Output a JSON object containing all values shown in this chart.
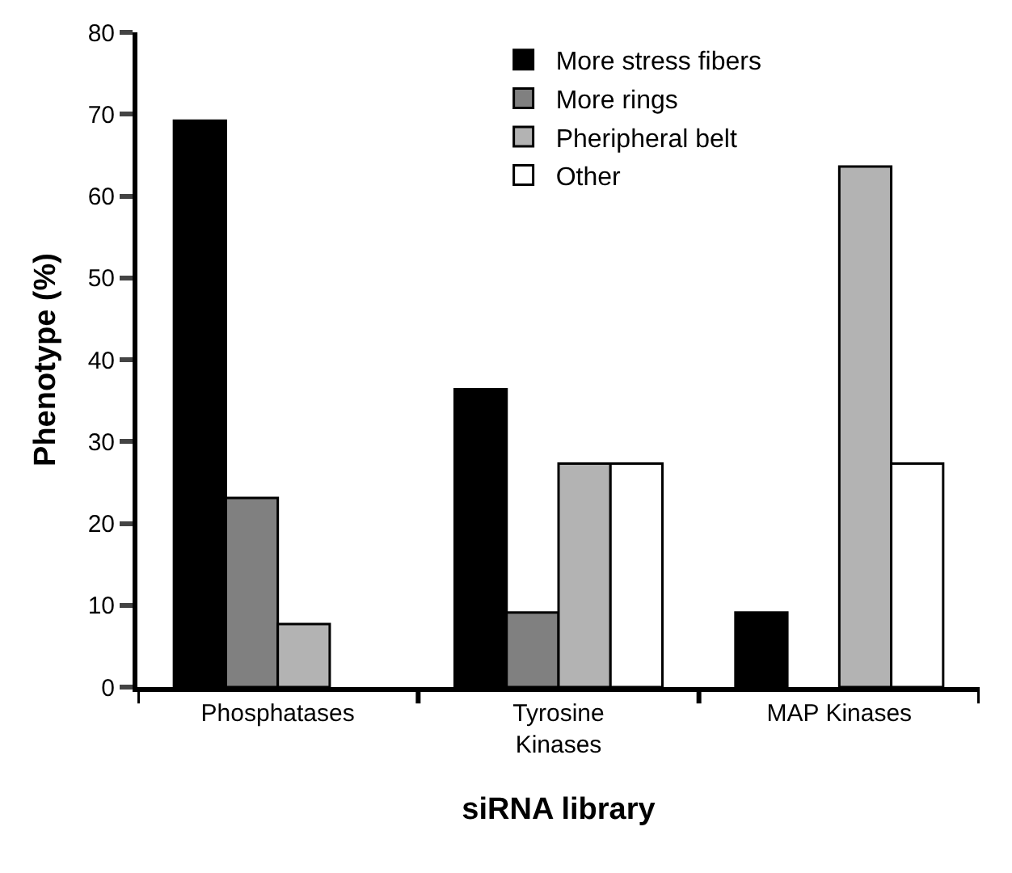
{
  "chart_data": {
    "type": "bar",
    "xlabel": "siRNA library",
    "ylabel": "Phenotype (%)",
    "categories": [
      "Phosphatases",
      "Tyrosine Kinases",
      "MAP Kinases"
    ],
    "series": [
      {
        "name": "More stress fibers",
        "color": "#000000",
        "values": [
          69.2,
          36.4,
          9.1
        ]
      },
      {
        "name": "More rings",
        "color": "#808080",
        "values": [
          23.1,
          9.1,
          null
        ]
      },
      {
        "name": "Pheripheral belt",
        "color": "#b3b3b3",
        "values": [
          7.7,
          27.3,
          63.6
        ]
      },
      {
        "name": "Other",
        "color": "#ffffff",
        "values": [
          null,
          27.3,
          27.3
        ]
      }
    ],
    "ylim": [
      0,
      80
    ],
    "yticks": [
      0,
      10,
      20,
      30,
      40,
      50,
      60,
      70,
      80
    ],
    "legend": "top right"
  }
}
